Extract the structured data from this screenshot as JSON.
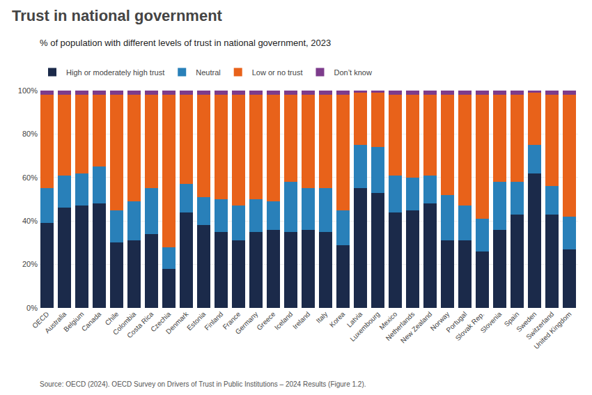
{
  "chart_data": {
    "type": "bar",
    "stacked": true,
    "title": "Trust in national government",
    "subtitle": "% of population with different levels of trust in national government, 2023",
    "source": "Source: OECD (2024). OECD Survey on Drivers of Trust in Public Institutions – 2024 Results (Figure 1.2).",
    "categories": [
      "OECD",
      "Australia",
      "Belgium",
      "Canada",
      "Chile",
      "Colombia",
      "Costa Rica",
      "Czechia",
      "Denmark",
      "Estonia",
      "Finland",
      "France",
      "Germany",
      "Greece",
      "Iceland",
      "Ireland",
      "Italy",
      "Korea",
      "Latvia",
      "Luxembourg",
      "Mexico",
      "Netherlands",
      "New Zealand",
      "Norway",
      "Portugal",
      "Slovak Rep.",
      "Slovenia",
      "Spain",
      "Sweden",
      "Switzerland",
      "United Kingdom"
    ],
    "series": [
      {
        "name": "High or moderately high trust",
        "color": "#1b2a4a",
        "values": [
          39,
          46,
          47,
          48,
          30,
          31,
          34,
          18,
          44,
          38,
          35,
          31,
          35,
          36,
          35,
          36,
          35,
          29,
          55,
          53,
          44,
          45,
          48,
          31,
          31,
          26,
          36,
          43,
          62,
          43,
          27
        ]
      },
      {
        "name": "Neutral",
        "color": "#2980b9",
        "values": [
          16,
          15,
          15,
          17,
          15,
          18,
          21,
          10,
          13,
          13,
          15,
          16,
          15,
          13,
          23,
          19,
          20,
          16,
          20,
          21,
          17,
          15,
          13,
          21,
          16,
          15,
          22,
          15,
          13,
          13,
          15
        ]
      },
      {
        "name": "Low or no trust",
        "color": "#e8621a",
        "values": [
          43,
          37,
          36,
          33,
          53,
          49,
          43,
          70,
          41,
          47,
          48,
          51,
          48,
          49,
          40,
          43,
          43,
          53,
          24,
          25,
          37,
          38,
          37,
          46,
          51,
          57,
          40,
          40,
          24,
          42,
          56
        ]
      },
      {
        "name": "Don’t know",
        "color": "#7d3c8c",
        "values": [
          2,
          2,
          2,
          2,
          2,
          2,
          2,
          2,
          2,
          2,
          2,
          2,
          2,
          2,
          2,
          2,
          2,
          2,
          1,
          1,
          2,
          2,
          2,
          2,
          2,
          2,
          2,
          2,
          1,
          2,
          2
        ]
      }
    ],
    "ylim": [
      0,
      100
    ],
    "yticks": [
      {
        "value": 0,
        "label": "0%"
      },
      {
        "value": 20,
        "label": "20%"
      },
      {
        "value": 40,
        "label": "40%"
      },
      {
        "value": 60,
        "label": "60%"
      },
      {
        "value": 80,
        "label": "80%"
      },
      {
        "value": 100,
        "label": "100%"
      }
    ],
    "grid": true,
    "legend": "top left"
  }
}
